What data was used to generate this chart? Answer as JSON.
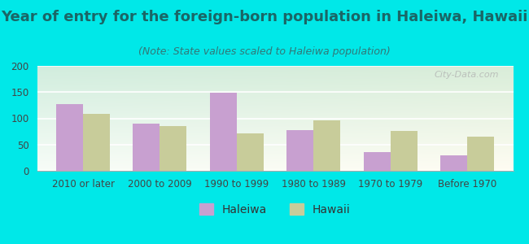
{
  "title": "Year of entry for the foreign-born population in Haleiwa, Hawaii",
  "subtitle": "(Note: State values scaled to Haleiwa population)",
  "categories": [
    "2010 or later",
    "2000 to 2009",
    "1990 to 1999",
    "1980 to 1989",
    "1970 to 1979",
    "Before 1970"
  ],
  "haleiwa_values": [
    127,
    90,
    149,
    77,
    35,
    30
  ],
  "hawaii_values": [
    108,
    85,
    72,
    96,
    76,
    65
  ],
  "haleiwa_color": "#c8a0d0",
  "hawaii_color": "#c8cc9a",
  "background_color": "#00e8e8",
  "ylim": [
    0,
    200
  ],
  "yticks": [
    0,
    50,
    100,
    150,
    200
  ],
  "legend_labels": [
    "Haleiwa",
    "Hawaii"
  ],
  "watermark": "City-Data.com",
  "bar_width": 0.35,
  "title_fontsize": 13,
  "subtitle_fontsize": 9,
  "tick_fontsize": 8.5,
  "legend_fontsize": 10
}
